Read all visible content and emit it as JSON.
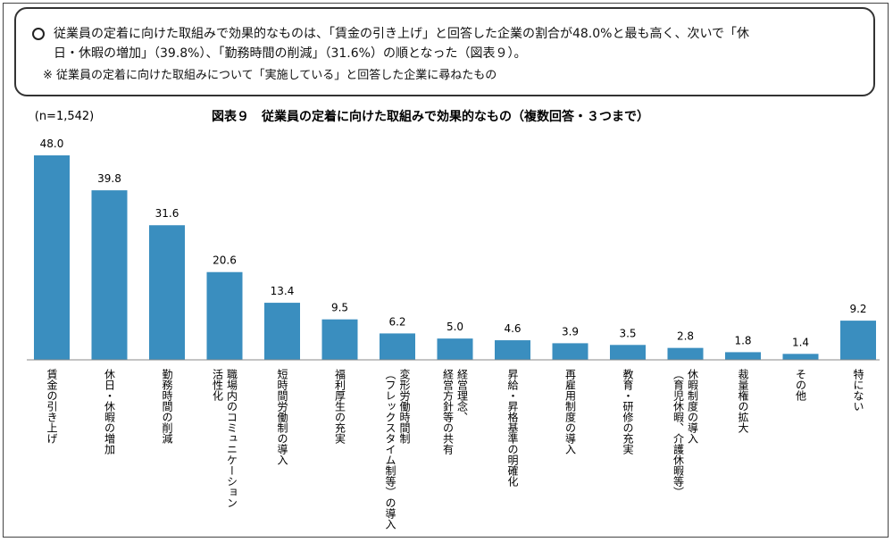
{
  "summary": {
    "line1": "従業員の定着に向けた取組みで効果的なものは、「賃金の引き上げ」と回答した企業の割合が48.0%と最も高く、次いで「休",
    "line2": "日・休暇の増加」（39.8%）、「勤務時間の削減」（31.6%）の順となった（図表９）。",
    "note": "※ 従業員の定着に向けた取組みについて「実施している」と回答した企業に尋ねたもの"
  },
  "chart_data": {
    "type": "bar",
    "title": "図表９　従業員の定着に向けた取組みで効果的なもの（複数回答・３つまで）",
    "sample_size": "(n=1,542)",
    "categories": [
      [
        "賃金の引き上げ"
      ],
      [
        "休日・休暇の増加"
      ],
      [
        "勤務時間の削減"
      ],
      [
        "職場内のコミュニケーション",
        "活性化"
      ],
      [
        "短時間労働制の導入"
      ],
      [
        "福利厚生の充実"
      ],
      [
        "変形労働時間制",
        "（フレックスタイム制等）の導入"
      ],
      [
        "経営理念、",
        "経営方針等の共有"
      ],
      [
        "昇給・昇格基準の明確化"
      ],
      [
        "再雇用制度の導入"
      ],
      [
        "教育・研修の充実"
      ],
      [
        "休暇制度の導入",
        "（育児休暇、介護休暇等）"
      ],
      [
        "裁量権の拡大"
      ],
      [
        "その他"
      ],
      [
        "特にない"
      ]
    ],
    "values": [
      "48.0",
      "39.8",
      "31.6",
      "20.6",
      "13.4",
      "9.5",
      "6.2",
      "5.0",
      "4.6",
      "3.9",
      "3.5",
      "2.8",
      "1.8",
      "1.4",
      "9.2"
    ],
    "unit": "%",
    "bar_color": "#3a8ebf",
    "grid": false,
    "legend": "none"
  }
}
